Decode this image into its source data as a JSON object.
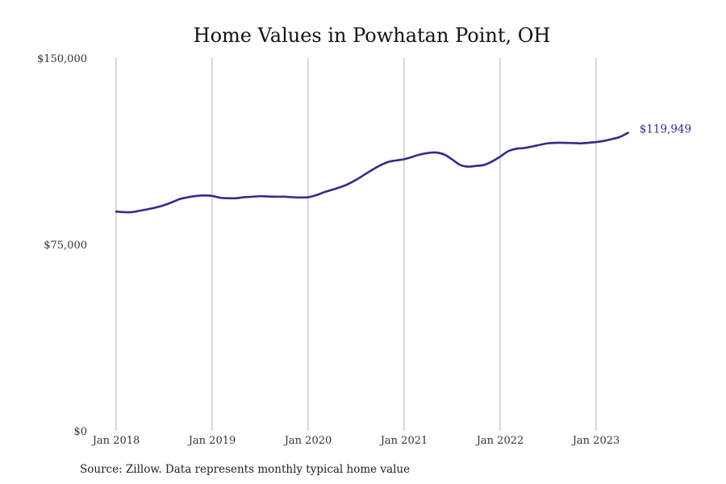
{
  "chart_data": {
    "type": "line",
    "title": "Home Values in Powhatan Point, OH",
    "source": "Source: Zillow. Data represents monthly typical home value",
    "xlabel": "",
    "ylabel": "",
    "ylim": [
      0,
      150000
    ],
    "y_ticks": [
      {
        "value": 0,
        "label": "$0"
      },
      {
        "value": 75000,
        "label": "$75,000"
      },
      {
        "value": 150000,
        "label": "$150,000"
      }
    ],
    "x_ticks": [
      {
        "value": "2018-01",
        "label": "Jan 2018"
      },
      {
        "value": "2019-01",
        "label": "Jan 2019"
      },
      {
        "value": "2020-01",
        "label": "Jan 2020"
      },
      {
        "value": "2021-01",
        "label": "Jan 2021"
      },
      {
        "value": "2022-01",
        "label": "Jan 2022"
      },
      {
        "value": "2023-01",
        "label": "Jan 2023"
      }
    ],
    "grid": {
      "vertical": true,
      "horizontal": false
    },
    "line_color": "#2e2e8a",
    "end_label": "$119,949",
    "series": [
      {
        "x": [
          "2018-01",
          "2018-02",
          "2018-03",
          "2018-04",
          "2018-05",
          "2018-06",
          "2018-07",
          "2018-08",
          "2018-09",
          "2018-10",
          "2018-11",
          "2018-12",
          "2019-01",
          "2019-02",
          "2019-03",
          "2019-04",
          "2019-05",
          "2019-06",
          "2019-07",
          "2019-08",
          "2019-09",
          "2019-10",
          "2019-11",
          "2019-12",
          "2020-01",
          "2020-02",
          "2020-03",
          "2020-04",
          "2020-05",
          "2020-06",
          "2020-07",
          "2020-08",
          "2020-09",
          "2020-10",
          "2020-11",
          "2020-12",
          "2021-01",
          "2021-02",
          "2021-03",
          "2021-04",
          "2021-05",
          "2021-06",
          "2021-07",
          "2021-08",
          "2021-09",
          "2021-10",
          "2021-11",
          "2021-12",
          "2022-01",
          "2022-02",
          "2022-03",
          "2022-04",
          "2022-05",
          "2022-06",
          "2022-07",
          "2022-08",
          "2022-09",
          "2022-10",
          "2022-11",
          "2022-12",
          "2023-01",
          "2023-02",
          "2023-03",
          "2023-04",
          "2023-05"
        ],
        "values": [
          88200,
          88000,
          88000,
          88600,
          89200,
          89900,
          90800,
          92000,
          93300,
          94000,
          94500,
          94700,
          94500,
          93800,
          93600,
          93600,
          94000,
          94200,
          94400,
          94300,
          94200,
          94200,
          94000,
          93900,
          94000,
          94800,
          96000,
          97000,
          98000,
          99300,
          101000,
          103000,
          105000,
          106800,
          108200,
          108800,
          109300,
          110200,
          111200,
          111800,
          112000,
          111200,
          109200,
          107000,
          106300,
          106600,
          107000,
          108400,
          110300,
          112500,
          113500,
          113800,
          114400,
          115100,
          115700,
          115900,
          115900,
          115800,
          115700,
          115900,
          116200,
          116700,
          117400,
          118300,
          119949
        ]
      }
    ]
  }
}
